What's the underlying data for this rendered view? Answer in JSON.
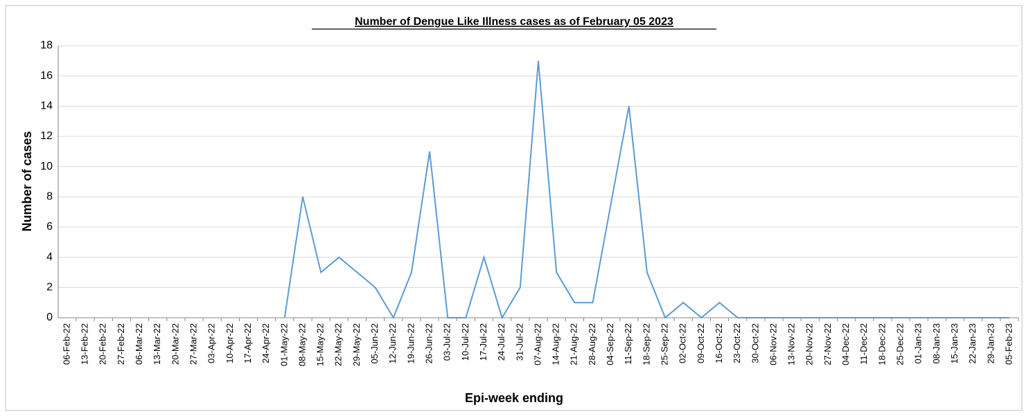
{
  "chart_data": {
    "type": "line",
    "title": "Number of Dengue Like Illness cases as of February 05 2023",
    "x_label": "Epi-week ending",
    "y_label": "Number of cases",
    "categories": [
      "06-Feb-22",
      "13-Feb-22",
      "20-Feb-22",
      "27-Feb-22",
      "06-Mar-22",
      "13-Mar-22",
      "20-Mar-22",
      "27-Mar-22",
      "03-Apr-22",
      "10-Apr-22",
      "17-Apr-22",
      "24-Apr-22",
      "01-May-22",
      "08-May-22",
      "15-May-22",
      "22-May-22",
      "29-May-22",
      "05-Jun-22",
      "12-Jun-22",
      "19-Jun-22",
      "26-Jun-22",
      "03-Jul-22",
      "10-Jul-22",
      "17-Jul-22",
      "24-Jul-22",
      "31-Jul-22",
      "07-Aug-22",
      "14-Aug-22",
      "21-Aug-22",
      "28-Aug-22",
      "04-Sep-22",
      "11-Sep-22",
      "18-Sep-22",
      "25-Sep-22",
      "02-Oct-22",
      "09-Oct-22",
      "16-Oct-22",
      "23-Oct-22",
      "30-Oct-22",
      "06-Nov-22",
      "13-Nov-22",
      "20-Nov-22",
      "27-Nov-22",
      "04-Dec-22",
      "11-Dec-22",
      "18-Dec-22",
      "25-Dec-22",
      "01-Jan-23",
      "08-Jan-23",
      "15-Jan-23",
      "22-Jan-23",
      "29-Jan-23",
      "05-Feb-23"
    ],
    "values": [
      null,
      null,
      null,
      null,
      null,
      null,
      null,
      null,
      null,
      null,
      null,
      null,
      0,
      8,
      3,
      4,
      3,
      2,
      0,
      3,
      11,
      0,
      0,
      4,
      0,
      2,
      17,
      3,
      1,
      1,
      7.5,
      14,
      3,
      0,
      1,
      0,
      1,
      0,
      0,
      0,
      0,
      0,
      0,
      0,
      0,
      0,
      0,
      0,
      0,
      0,
      0,
      0,
      0
    ],
    "color": "#5b9bd5",
    "ylim": [
      0,
      18
    ],
    "yticks": [
      0,
      2,
      4,
      6,
      8,
      10,
      12,
      14,
      16,
      18
    ],
    "grid": true
  }
}
